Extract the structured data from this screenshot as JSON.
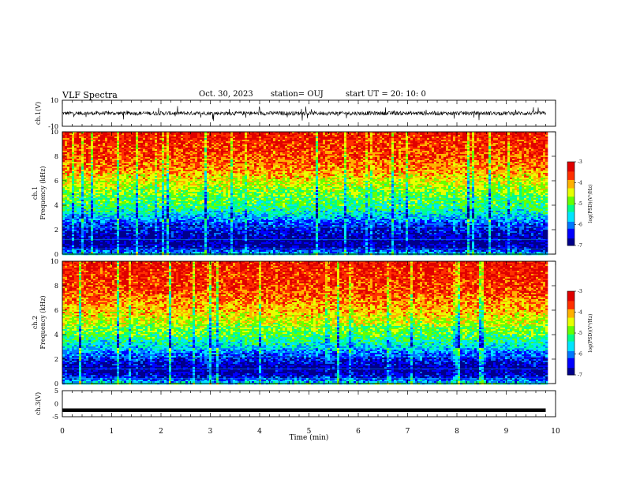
{
  "header": {
    "title": "VLF Spectra",
    "date": "Oct. 30, 2023",
    "station": "station= OUJ",
    "start": "start  UT  =   20: 10: 0"
  },
  "colors": {
    "spectrum_scale": [
      "#00008b",
      "#0000ff",
      "#0077ff",
      "#00e5ff",
      "#00ff88",
      "#66ff00",
      "#e8ff00",
      "#ffb000",
      "#ff3000",
      "#e00000"
    ]
  },
  "chart_data": [
    {
      "type": "line",
      "panel": "ch1-waveform",
      "ylabel": "ch.1(V)",
      "yticks": [
        "10",
        "-10"
      ],
      "ylim": [
        -10,
        10
      ],
      "x_range_min": [
        0,
        9.8
      ],
      "description_values": {
        "baseline": 0,
        "typical_amplitude": 3,
        "spike_amplitude": 6
      }
    },
    {
      "type": "heatmap",
      "panel": "ch1-spectrogram",
      "ylabel": "ch.1\nFrequency (kHz)",
      "yticks": [
        "0",
        "2",
        "4",
        "6",
        "8",
        "10"
      ],
      "ylim": [
        0,
        10
      ],
      "colorbar": {
        "label": "log(PSD)(V²/Hz)",
        "ticks": [
          "-3",
          "-4",
          "-5",
          "-6",
          "-7"
        ],
        "range": [
          -7,
          -3
        ]
      },
      "band_profile_khz": [
        [
          0,
          -5.5
        ],
        [
          0.5,
          -6.6
        ],
        [
          1,
          -6.8
        ],
        [
          1.5,
          -6.7
        ],
        [
          2,
          -6.5
        ],
        [
          2.5,
          -6.3
        ],
        [
          3,
          -5.8
        ],
        [
          3.5,
          -5.4
        ],
        [
          4,
          -5.1
        ],
        [
          5,
          -4.8
        ],
        [
          6,
          -4.4
        ],
        [
          7,
          -3.9
        ],
        [
          8,
          -3.6
        ],
        [
          10,
          -3.3
        ]
      ]
    },
    {
      "type": "heatmap",
      "panel": "ch2-spectrogram",
      "ylabel": "ch.2\nFrequency (kHz)",
      "yticks": [
        "0",
        "2",
        "4",
        "6",
        "8",
        "10"
      ],
      "ylim": [
        0,
        10
      ],
      "colorbar": {
        "label": "log(PSD)(V²/Hz)",
        "ticks": [
          "-3",
          "-4",
          "-5",
          "-6",
          "-7"
        ],
        "range": [
          -7,
          -3
        ]
      },
      "band_profile_khz": [
        [
          0,
          -5.3
        ],
        [
          0.5,
          -6.4
        ],
        [
          1,
          -6.8
        ],
        [
          1.5,
          -6.7
        ],
        [
          2,
          -6.4
        ],
        [
          2.5,
          -6.1
        ],
        [
          3,
          -5.6
        ],
        [
          3.5,
          -5.3
        ],
        [
          4,
          -5.0
        ],
        [
          5,
          -4.5
        ],
        [
          6,
          -4.1
        ],
        [
          7,
          -3.8
        ],
        [
          8,
          -3.5
        ],
        [
          10,
          -3.3
        ]
      ]
    },
    {
      "type": "line",
      "panel": "ch3-waveform",
      "ylabel": "ch.3(V)",
      "yticks": [
        "5",
        "0",
        "-5"
      ],
      "ylim": [
        -5,
        5
      ],
      "x_range_min": [
        0,
        9.8
      ],
      "values_constant": -2.5
    }
  ],
  "xaxis": {
    "label": "Time (min)",
    "ticks": [
      "0",
      "1",
      "2",
      "3",
      "4",
      "5",
      "6",
      "7",
      "8",
      "9",
      "10"
    ],
    "range": [
      0,
      10
    ]
  }
}
